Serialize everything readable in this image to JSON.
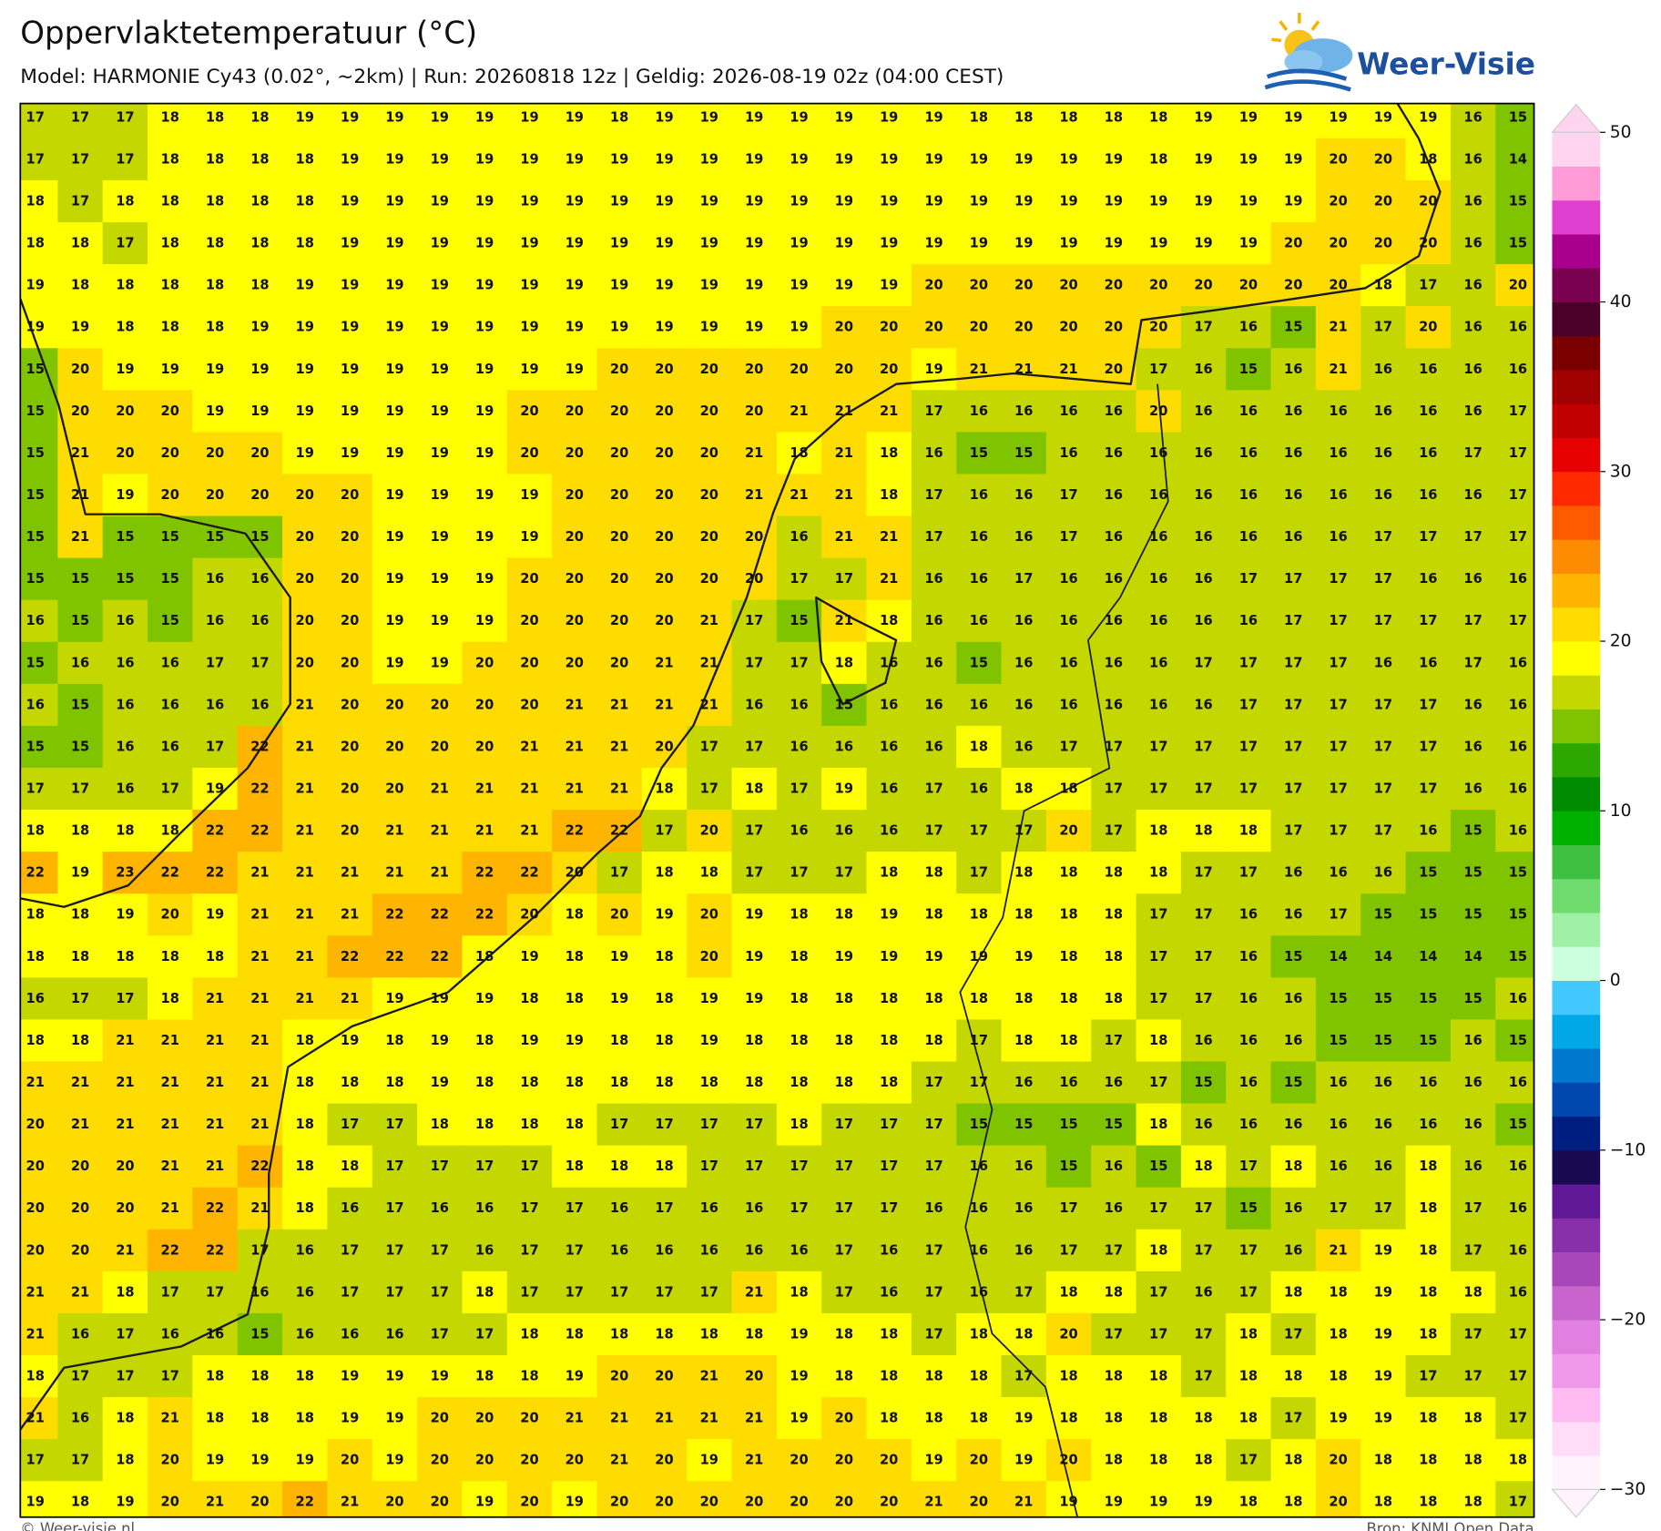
{
  "header": {
    "title": "Oppervlaktetemperatuur (°C)",
    "subtitle": "Model: HARMONIE Cy43 (0.02°, ~2km)  |  Run: 20260818 12z  |  Geldig: 2026-08-19 02z (04:00 CEST)"
  },
  "logo": {
    "text": "Weer-Visie"
  },
  "grid": {
    "rows": [
      [
        17,
        17,
        17,
        18,
        18,
        18,
        19,
        19,
        19,
        19,
        19,
        19,
        19,
        18,
        19,
        19,
        19,
        19,
        19,
        19,
        19,
        18,
        18,
        18,
        18,
        18,
        19,
        19,
        19,
        19,
        19,
        19,
        16,
        15
      ],
      [
        17,
        17,
        17,
        18,
        18,
        18,
        18,
        19,
        19,
        19,
        19,
        19,
        19,
        19,
        19,
        19,
        19,
        19,
        19,
        19,
        19,
        19,
        19,
        19,
        19,
        18,
        19,
        19,
        19,
        20,
        20,
        18,
        16,
        14
      ],
      [
        18,
        17,
        18,
        18,
        18,
        18,
        18,
        19,
        19,
        19,
        19,
        19,
        19,
        19,
        19,
        19,
        19,
        19,
        19,
        19,
        19,
        19,
        19,
        19,
        19,
        19,
        19,
        19,
        19,
        20,
        20,
        20,
        16,
        15
      ],
      [
        18,
        18,
        17,
        18,
        18,
        18,
        18,
        19,
        19,
        19,
        19,
        19,
        19,
        19,
        19,
        19,
        19,
        19,
        19,
        19,
        19,
        19,
        19,
        19,
        19,
        19,
        19,
        19,
        20,
        20,
        20,
        20,
        16,
        15
      ],
      [
        19,
        18,
        18,
        18,
        18,
        18,
        19,
        19,
        19,
        19,
        19,
        19,
        19,
        19,
        19,
        19,
        19,
        19,
        19,
        19,
        20,
        20,
        20,
        20,
        20,
        20,
        20,
        20,
        20,
        20,
        18,
        17,
        16,
        20
      ],
      [
        19,
        19,
        18,
        18,
        18,
        19,
        19,
        19,
        19,
        19,
        19,
        19,
        19,
        19,
        19,
        19,
        19,
        19,
        20,
        20,
        20,
        20,
        20,
        20,
        20,
        20,
        17,
        16,
        15,
        21,
        17,
        20,
        16,
        16
      ],
      [
        15,
        20,
        19,
        19,
        19,
        19,
        19,
        19,
        19,
        19,
        19,
        19,
        19,
        20,
        20,
        20,
        20,
        20,
        20,
        20,
        19,
        21,
        21,
        21,
        20,
        17,
        16,
        15,
        16,
        21,
        16,
        16,
        16,
        16
      ],
      [
        15,
        20,
        20,
        20,
        19,
        19,
        19,
        19,
        19,
        19,
        19,
        20,
        20,
        20,
        20,
        20,
        20,
        21,
        21,
        21,
        17,
        16,
        16,
        16,
        16,
        20,
        16,
        16,
        16,
        16,
        16,
        16,
        16,
        17
      ],
      [
        15,
        21,
        20,
        20,
        20,
        20,
        19,
        19,
        19,
        19,
        19,
        20,
        20,
        20,
        20,
        20,
        21,
        18,
        21,
        18,
        16,
        15,
        15,
        16,
        16,
        16,
        16,
        16,
        16,
        16,
        16,
        16,
        17,
        17
      ],
      [
        15,
        21,
        19,
        20,
        20,
        20,
        20,
        20,
        19,
        19,
        19,
        19,
        20,
        20,
        20,
        20,
        21,
        21,
        21,
        18,
        17,
        16,
        16,
        17,
        16,
        16,
        16,
        16,
        16,
        16,
        16,
        16,
        16,
        17
      ],
      [
        15,
        21,
        15,
        15,
        15,
        15,
        20,
        20,
        19,
        19,
        19,
        19,
        20,
        20,
        20,
        20,
        20,
        16,
        21,
        21,
        17,
        16,
        16,
        17,
        16,
        16,
        16,
        16,
        16,
        16,
        17,
        17,
        17,
        17
      ],
      [
        15,
        15,
        15,
        15,
        16,
        16,
        20,
        20,
        19,
        19,
        19,
        20,
        20,
        20,
        20,
        20,
        20,
        17,
        17,
        21,
        16,
        16,
        17,
        16,
        16,
        16,
        16,
        17,
        17,
        17,
        17,
        16,
        16,
        16
      ],
      [
        16,
        15,
        16,
        15,
        16,
        16,
        20,
        20,
        19,
        19,
        19,
        20,
        20,
        20,
        20,
        21,
        17,
        15,
        21,
        18,
        16,
        16,
        16,
        16,
        16,
        16,
        16,
        16,
        17,
        17,
        17,
        17,
        17,
        17
      ],
      [
        15,
        16,
        16,
        16,
        17,
        17,
        20,
        20,
        19,
        19,
        20,
        20,
        20,
        20,
        21,
        21,
        17,
        17,
        18,
        16,
        16,
        15,
        16,
        16,
        16,
        16,
        17,
        17,
        17,
        17,
        16,
        16,
        17,
        16
      ],
      [
        16,
        15,
        16,
        16,
        16,
        16,
        21,
        20,
        20,
        20,
        20,
        20,
        21,
        21,
        21,
        21,
        16,
        16,
        15,
        16,
        16,
        16,
        16,
        16,
        16,
        16,
        16,
        17,
        17,
        17,
        17,
        17,
        16,
        16
      ],
      [
        15,
        15,
        16,
        16,
        17,
        22,
        21,
        20,
        20,
        20,
        20,
        21,
        21,
        21,
        20,
        17,
        17,
        16,
        16,
        16,
        16,
        18,
        16,
        17,
        17,
        17,
        17,
        17,
        17,
        17,
        17,
        17,
        16,
        16
      ],
      [
        17,
        17,
        16,
        17,
        19,
        22,
        21,
        20,
        20,
        21,
        21,
        21,
        21,
        21,
        18,
        17,
        18,
        17,
        19,
        16,
        17,
        16,
        18,
        18,
        17,
        17,
        17,
        17,
        17,
        17,
        17,
        17,
        16,
        16
      ],
      [
        18,
        18,
        18,
        18,
        22,
        22,
        21,
        20,
        21,
        21,
        21,
        21,
        22,
        22,
        17,
        20,
        17,
        16,
        16,
        16,
        17,
        17,
        17,
        20,
        17,
        18,
        18,
        18,
        17,
        17,
        17,
        16,
        15,
        16
      ],
      [
        22,
        19,
        23,
        22,
        22,
        21,
        21,
        21,
        21,
        21,
        22,
        22,
        20,
        17,
        18,
        18,
        17,
        17,
        17,
        18,
        18,
        17,
        18,
        18,
        18,
        18,
        17,
        17,
        16,
        16,
        16,
        15,
        15,
        15
      ],
      [
        18,
        18,
        19,
        20,
        19,
        21,
        21,
        21,
        22,
        22,
        22,
        20,
        18,
        20,
        19,
        20,
        19,
        18,
        18,
        19,
        18,
        18,
        18,
        18,
        18,
        17,
        17,
        16,
        16,
        17,
        15,
        15,
        15,
        15
      ],
      [
        18,
        18,
        18,
        18,
        18,
        21,
        21,
        22,
        22,
        22,
        18,
        19,
        18,
        19,
        18,
        20,
        19,
        18,
        19,
        19,
        19,
        19,
        19,
        18,
        18,
        17,
        17,
        16,
        15,
        14,
        14,
        14,
        14,
        15
      ],
      [
        16,
        17,
        17,
        18,
        21,
        21,
        21,
        21,
        19,
        19,
        19,
        18,
        18,
        19,
        18,
        19,
        19,
        18,
        18,
        18,
        18,
        18,
        18,
        18,
        18,
        17,
        17,
        16,
        16,
        15,
        15,
        15,
        15,
        16
      ],
      [
        18,
        18,
        21,
        21,
        21,
        21,
        18,
        19,
        18,
        19,
        18,
        19,
        19,
        18,
        18,
        19,
        18,
        18,
        18,
        18,
        18,
        17,
        18,
        18,
        17,
        18,
        16,
        16,
        16,
        15,
        15,
        15,
        16,
        15
      ],
      [
        21,
        21,
        21,
        21,
        21,
        21,
        18,
        18,
        18,
        19,
        18,
        18,
        18,
        18,
        18,
        18,
        18,
        18,
        18,
        18,
        17,
        17,
        16,
        16,
        16,
        17,
        15,
        16,
        15,
        16,
        16,
        16,
        16,
        16
      ],
      [
        20,
        21,
        21,
        21,
        21,
        21,
        18,
        17,
        17,
        18,
        18,
        18,
        18,
        17,
        17,
        17,
        17,
        18,
        17,
        17,
        17,
        15,
        15,
        15,
        15,
        18,
        16,
        16,
        16,
        16,
        16,
        16,
        16,
        15
      ],
      [
        20,
        20,
        20,
        21,
        21,
        22,
        18,
        18,
        17,
        17,
        17,
        17,
        18,
        18,
        18,
        17,
        17,
        17,
        17,
        17,
        17,
        16,
        16,
        15,
        16,
        15,
        18,
        17,
        18,
        16,
        16,
        18,
        16,
        16
      ],
      [
        20,
        20,
        20,
        21,
        22,
        21,
        18,
        16,
        17,
        16,
        16,
        17,
        17,
        16,
        17,
        16,
        16,
        17,
        17,
        17,
        16,
        16,
        16,
        17,
        16,
        17,
        17,
        15,
        16,
        17,
        17,
        18,
        17,
        16
      ],
      [
        20,
        20,
        21,
        22,
        22,
        17,
        16,
        17,
        17,
        17,
        16,
        17,
        17,
        16,
        16,
        16,
        16,
        16,
        17,
        16,
        17,
        16,
        16,
        17,
        17,
        18,
        17,
        17,
        16,
        21,
        19,
        18,
        17,
        16
      ],
      [
        21,
        21,
        18,
        17,
        17,
        16,
        16,
        17,
        17,
        17,
        18,
        17,
        17,
        17,
        17,
        17,
        21,
        18,
        17,
        16,
        17,
        16,
        17,
        18,
        18,
        17,
        16,
        17,
        18,
        18,
        19,
        18,
        18,
        16
      ],
      [
        21,
        16,
        17,
        16,
        16,
        15,
        16,
        16,
        16,
        17,
        17,
        18,
        18,
        18,
        18,
        18,
        18,
        19,
        18,
        18,
        17,
        18,
        18,
        20,
        17,
        17,
        17,
        18,
        17,
        18,
        19,
        18,
        17,
        17
      ],
      [
        18,
        17,
        17,
        17,
        18,
        18,
        18,
        19,
        19,
        19,
        18,
        18,
        19,
        20,
        20,
        21,
        20,
        19,
        18,
        18,
        18,
        18,
        17,
        18,
        18,
        18,
        17,
        18,
        18,
        18,
        19,
        17,
        17,
        17
      ],
      [
        21,
        16,
        18,
        21,
        18,
        18,
        18,
        19,
        19,
        20,
        20,
        20,
        21,
        21,
        21,
        21,
        21,
        19,
        20,
        18,
        18,
        18,
        19,
        18,
        18,
        18,
        18,
        18,
        17,
        19,
        19,
        18,
        18,
        17
      ],
      [
        17,
        17,
        18,
        20,
        19,
        19,
        19,
        20,
        19,
        20,
        20,
        20,
        20,
        21,
        20,
        19,
        21,
        20,
        20,
        20,
        19,
        20,
        19,
        20,
        18,
        18,
        18,
        17,
        18,
        20,
        18,
        18,
        18,
        18
      ],
      [
        19,
        18,
        19,
        20,
        21,
        20,
        22,
        21,
        20,
        20,
        19,
        20,
        19,
        20,
        20,
        20,
        20,
        20,
        20,
        20,
        21,
        20,
        21,
        19,
        19,
        19,
        19,
        18,
        18,
        20,
        18,
        18,
        18,
        17
      ]
    ]
  },
  "colorbar": {
    "ticks": [
      50,
      40,
      30,
      20,
      10,
      0,
      {
        "value": -10,
        "label": "−10"
      },
      {
        "value": -20,
        "label": "−20"
      },
      {
        "value": -30,
        "label": "−30"
      }
    ],
    "colors": [
      "#fff4fd",
      "#ffdcf8",
      "#ffbcf2",
      "#f098ea",
      "#e080e0",
      "#c864cc",
      "#a848b8",
      "#8830a8",
      "#601896",
      "#180a50",
      "#001e80",
      "#0048b0",
      "#0078d0",
      "#00a8e8",
      "#40c8ff",
      "#ccffdd",
      "#a0f0a8",
      "#70dc70",
      "#40c040",
      "#00b000",
      "#008c00",
      "#2ca800",
      "#80c400",
      "#c4d800",
      "#ffff00",
      "#ffdc00",
      "#ffb400",
      "#ff8c00",
      "#ff5a00",
      "#ff2a00",
      "#e60000",
      "#c00000",
      "#a00000",
      "#7a0000",
      "#4a0028",
      "#7a0050",
      "#a8008c",
      "#e040d0",
      "#ff9cd8",
      "#ffd4ee"
    ]
  },
  "footer": {
    "left": "© Weer-visie.nl",
    "right": "Bron: KNMI Open Data"
  }
}
